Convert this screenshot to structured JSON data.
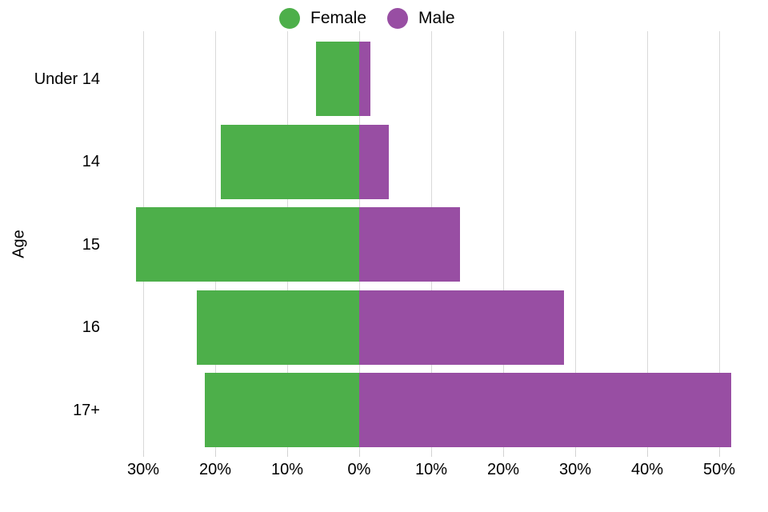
{
  "chart_data": {
    "type": "bar",
    "subtype": "population-pyramid",
    "orientation": "horizontal",
    "title": "",
    "xlabel": "",
    "ylabel": "Age",
    "categories": [
      "Under 14",
      "14",
      "15",
      "16",
      "17+"
    ],
    "series": [
      {
        "name": "Female",
        "side": "left",
        "color": "#4daf4a",
        "values": [
          6.0,
          19.2,
          31.0,
          22.6,
          21.4
        ]
      },
      {
        "name": "Male",
        "side": "right",
        "color": "#984ea3",
        "values": [
          1.5,
          4.1,
          14.0,
          28.4,
          51.7
        ]
      }
    ],
    "x_axis": {
      "unit": "%",
      "tick_values": [
        -30,
        -20,
        -10,
        0,
        10,
        20,
        30,
        40,
        50
      ],
      "tick_labels": [
        "30%",
        "20%",
        "10%",
        "0%",
        "10%",
        "20%",
        "30%",
        "40%",
        "50%"
      ],
      "range": [
        -35,
        56
      ],
      "grid": "vertical-major-only"
    },
    "legend_position": "top-center"
  },
  "legend": {
    "items": [
      {
        "label": "Female",
        "color": "#4daf4a"
      },
      {
        "label": "Male",
        "color": "#984ea3"
      }
    ]
  },
  "y_axis": {
    "title": "Age",
    "labels": [
      "Under 14",
      "14",
      "15",
      "16",
      "17+"
    ]
  },
  "colors": {
    "female": "#4daf4a",
    "male": "#984ea3",
    "gridline": "#d9d9d9",
    "background": "#ffffff",
    "text": "#000000"
  }
}
